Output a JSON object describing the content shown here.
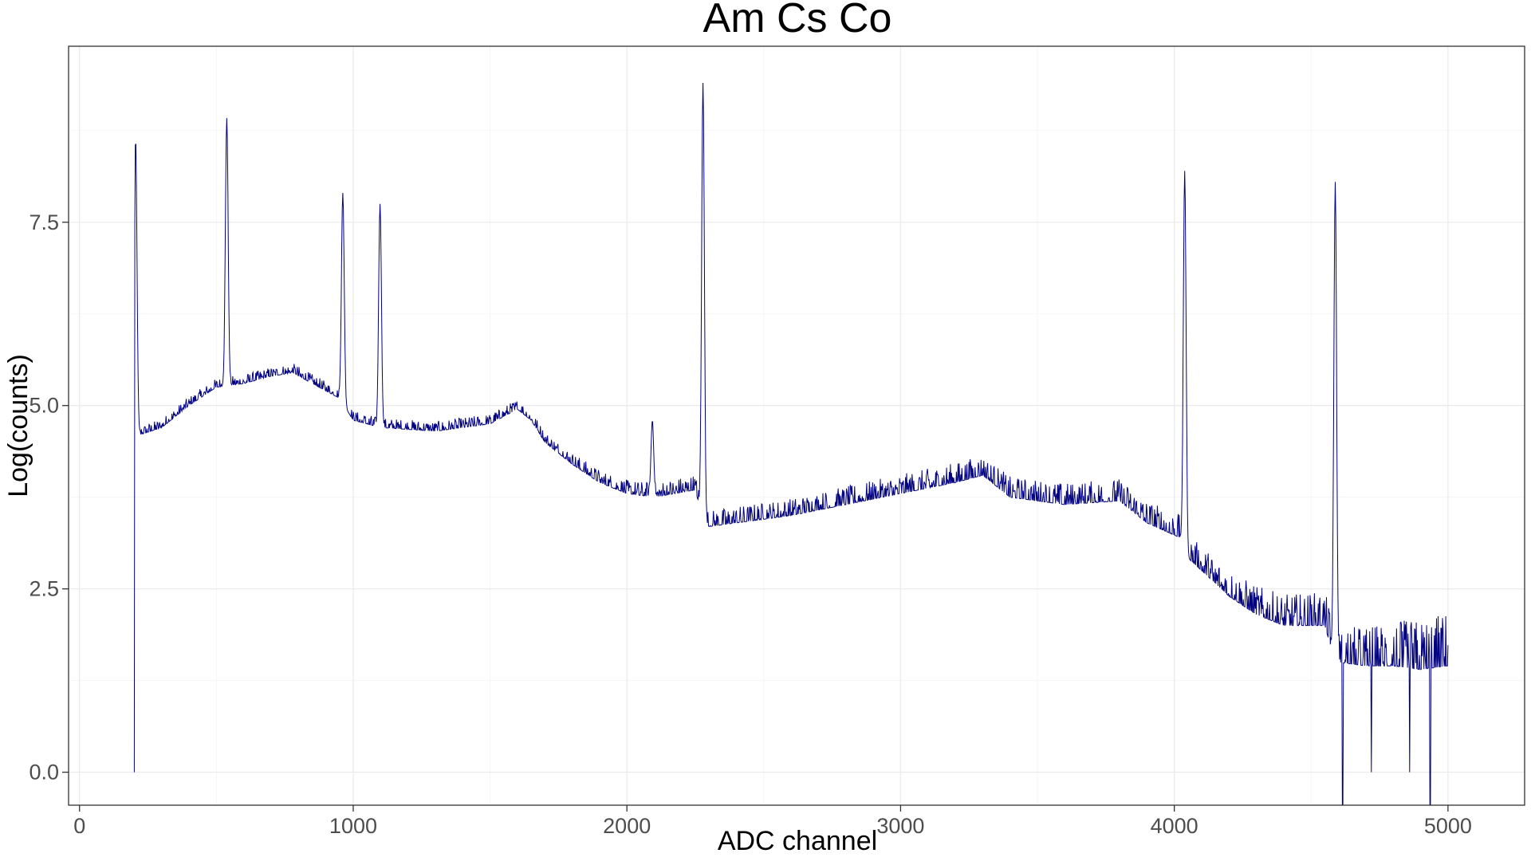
{
  "chart_data": {
    "type": "line",
    "title": "Am Cs Co",
    "xlabel": "ADC channel",
    "ylabel": "Log(counts)",
    "xlim": [
      -40,
      5280
    ],
    "ylim": [
      -0.45,
      9.9
    ],
    "x_ticks": [
      0,
      1000,
      2000,
      3000,
      4000,
      5000
    ],
    "x_tick_labels": [
      "0",
      "1000",
      "2000",
      "3000",
      "4000",
      "5000"
    ],
    "y_ticks": [
      0,
      2.5,
      5,
      7.5
    ],
    "y_tick_labels": [
      "0.0",
      "2.5",
      "5.0",
      "7.5"
    ],
    "grid": true,
    "legend": "none",
    "line_color": "#000080",
    "series": [
      {
        "baseline": {
          "x": [
            200,
            205,
            220,
            300,
            400,
            500,
            600,
            700,
            780,
            850,
            950,
            1000,
            1100,
            1300,
            1500,
            1600,
            1650,
            1700,
            1800,
            1900,
            2000,
            2100,
            2250,
            2280,
            2300,
            2400,
            2600,
            2800,
            3000,
            3200,
            3300,
            3400,
            3600,
            3800,
            3900,
            4020,
            4040,
            4100,
            4200,
            4300,
            4400,
            4550,
            4580,
            4600,
            4700,
            4800,
            4900,
            5000
          ],
          "y": [
            0.0,
            4.6,
            4.6,
            4.7,
            5.0,
            5.25,
            5.3,
            5.4,
            5.45,
            5.3,
            5.1,
            4.8,
            4.7,
            4.65,
            4.75,
            4.95,
            4.8,
            4.5,
            4.2,
            3.95,
            3.8,
            3.75,
            3.85,
            3.4,
            3.35,
            3.4,
            3.5,
            3.65,
            3.8,
            3.95,
            4.05,
            3.75,
            3.65,
            3.7,
            3.4,
            3.2,
            2.95,
            2.75,
            2.4,
            2.15,
            2.0,
            2.0,
            1.6,
            1.5,
            1.45,
            1.45,
            1.4,
            1.45
          ]
        },
        "noise": {
          "x": [
            200,
            1600,
            2280,
            4040,
            4600,
            5000
          ],
          "amplitude": [
            0.12,
            0.14,
            0.22,
            0.32,
            0.48,
            0.75
          ]
        },
        "peaks": [
          {
            "x": 205,
            "y": 8.65
          },
          {
            "x": 538,
            "y": 8.92
          },
          {
            "x": 962,
            "y": 7.9
          },
          {
            "x": 1098,
            "y": 7.75
          },
          {
            "x": 2093,
            "y": 4.8
          },
          {
            "x": 2278,
            "y": 9.4
          },
          {
            "x": 4038,
            "y": 8.2
          },
          {
            "x": 4588,
            "y": 8.05
          }
        ],
        "dips": [
          {
            "x": 4615,
            "y": -0.45
          },
          {
            "x": 4720,
            "y": 0.0
          },
          {
            "x": 4860,
            "y": 0.0
          },
          {
            "x": 4935,
            "y": -0.45
          }
        ]
      }
    ]
  }
}
